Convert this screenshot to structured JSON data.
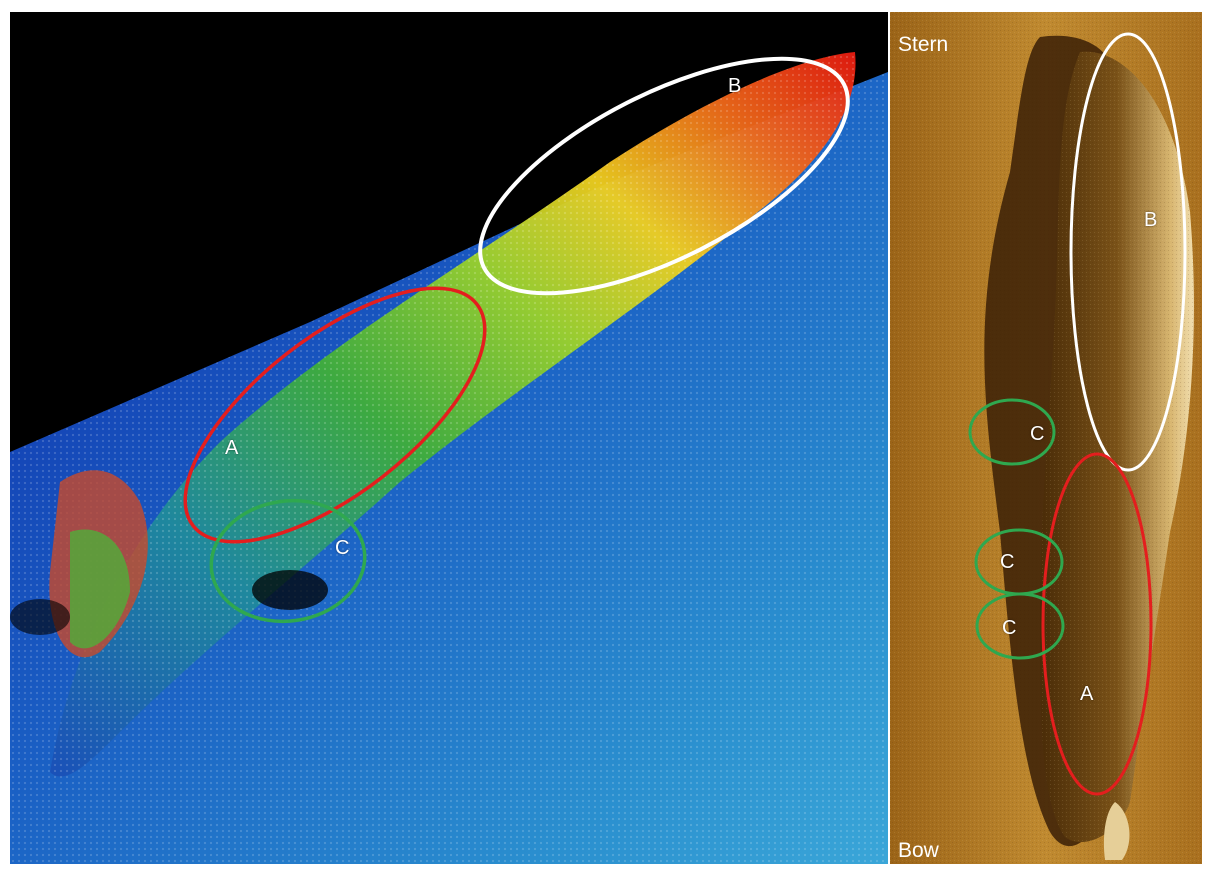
{
  "left_panel": {
    "label_a": "A",
    "label_b": "B",
    "label_c": "C"
  },
  "right_panel": {
    "stern_label": "Stern",
    "bow_label": "Bow",
    "label_a": "A",
    "label_b": "B",
    "label_c": "C"
  },
  "colors": {
    "region_a_outline": "#e41e1e",
    "region_b_outline": "#ffffff",
    "region_c_outline": "#2fa84f",
    "sonar_background": "#b57a26",
    "multibeam_background": "#000000"
  }
}
